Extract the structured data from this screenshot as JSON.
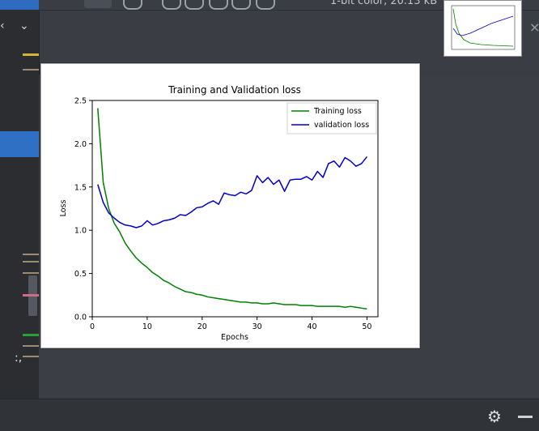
{
  "toolbar": {
    "image_info": "1-bit color, 20.13 kB"
  },
  "colors": {
    "training": "#008000",
    "validation": "#0000cc",
    "accent": "#2f6fc4"
  },
  "chart_data": {
    "type": "line",
    "title": "Training and Validation loss",
    "xlabel": "Epochs",
    "ylabel": "Loss",
    "xlim": [
      0,
      52
    ],
    "ylim": [
      0,
      2.5
    ],
    "xticks": [
      "0",
      "10",
      "20",
      "30",
      "40",
      "50"
    ],
    "yticks": [
      "0.0",
      "0.5",
      "1.0",
      "1.5",
      "2.0",
      "2.5"
    ],
    "xtick_values": [
      0,
      10,
      20,
      30,
      40,
      50
    ],
    "ytick_values": [
      0,
      0.5,
      1,
      1.5,
      2,
      2.5
    ],
    "legend": "top-right",
    "x": [
      1,
      2,
      3,
      4,
      5,
      6,
      7,
      8,
      9,
      10,
      11,
      12,
      13,
      14,
      15,
      16,
      17,
      18,
      19,
      20,
      21,
      22,
      23,
      24,
      25,
      26,
      27,
      28,
      29,
      30,
      31,
      32,
      33,
      34,
      35,
      36,
      37,
      38,
      39,
      40,
      41,
      42,
      43,
      44,
      45,
      46,
      47,
      48,
      49,
      50
    ],
    "series": [
      {
        "name": "Training loss",
        "color": "#008000",
        "values": [
          2.41,
          1.55,
          1.25,
          1.08,
          0.98,
          0.85,
          0.76,
          0.68,
          0.62,
          0.57,
          0.51,
          0.47,
          0.42,
          0.39,
          0.35,
          0.32,
          0.29,
          0.28,
          0.26,
          0.25,
          0.23,
          0.22,
          0.21,
          0.2,
          0.19,
          0.18,
          0.17,
          0.17,
          0.16,
          0.16,
          0.15,
          0.15,
          0.16,
          0.15,
          0.14,
          0.14,
          0.14,
          0.13,
          0.13,
          0.13,
          0.12,
          0.12,
          0.12,
          0.12,
          0.12,
          0.11,
          0.12,
          0.11,
          0.1,
          0.09
        ]
      },
      {
        "name": "validation loss",
        "color": "#0000cc",
        "values": [
          1.53,
          1.32,
          1.2,
          1.14,
          1.09,
          1.06,
          1.05,
          1.03,
          1.05,
          1.11,
          1.06,
          1.08,
          1.11,
          1.12,
          1.14,
          1.18,
          1.17,
          1.21,
          1.26,
          1.27,
          1.31,
          1.34,
          1.3,
          1.43,
          1.41,
          1.4,
          1.44,
          1.42,
          1.46,
          1.63,
          1.55,
          1.61,
          1.53,
          1.58,
          1.45,
          1.58,
          1.59,
          1.59,
          1.62,
          1.58,
          1.68,
          1.61,
          1.77,
          1.8,
          1.73,
          1.84,
          1.8,
          1.74,
          1.77,
          1.85
        ]
      }
    ]
  }
}
